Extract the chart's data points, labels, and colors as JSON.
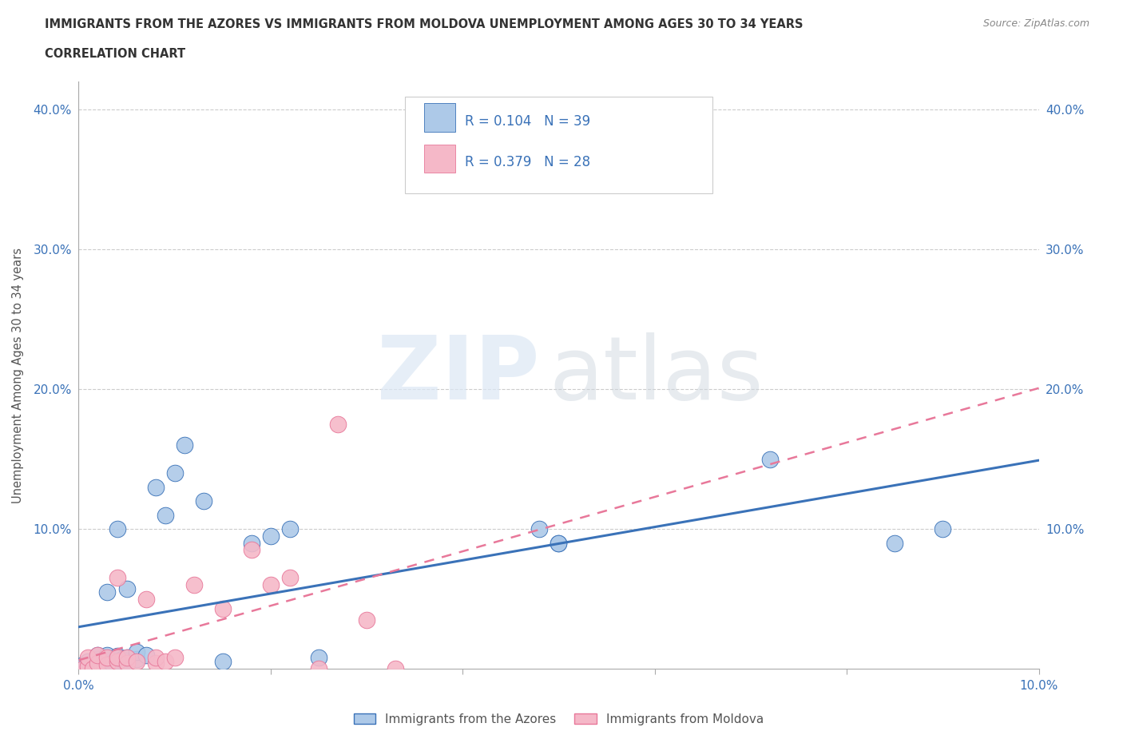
{
  "title_line1": "IMMIGRANTS FROM THE AZORES VS IMMIGRANTS FROM MOLDOVA UNEMPLOYMENT AMONG AGES 30 TO 34 YEARS",
  "title_line2": "CORRELATION CHART",
  "source": "Source: ZipAtlas.com",
  "ylabel": "Unemployment Among Ages 30 to 34 years",
  "xlim": [
    0.0,
    0.1
  ],
  "ylim": [
    0.0,
    0.42
  ],
  "legend_label1": "Immigrants from the Azores",
  "legend_label2": "Immigrants from Moldova",
  "R1": "0.104",
  "N1": "39",
  "R2": "0.379",
  "N2": "28",
  "color_azores": "#adc9e8",
  "color_moldova": "#f5b8c8",
  "color_line_azores": "#3a72b8",
  "color_line_moldova": "#e8789a",
  "color_text_blue": "#3a72b8",
  "color_text_dark": "#333333",
  "color_grid": "#cccccc",
  "azores_x": [
    0.0005,
    0.001,
    0.001,
    0.0015,
    0.002,
    0.002,
    0.002,
    0.0025,
    0.003,
    0.003,
    0.003,
    0.003,
    0.0035,
    0.004,
    0.004,
    0.004,
    0.0045,
    0.005,
    0.005,
    0.005,
    0.006,
    0.006,
    0.007,
    0.008,
    0.009,
    0.01,
    0.011,
    0.013,
    0.015,
    0.018,
    0.02,
    0.022,
    0.025,
    0.048,
    0.05,
    0.05,
    0.072,
    0.085,
    0.09
  ],
  "azores_y": [
    0.003,
    0.001,
    0.005,
    0.0,
    0.004,
    0.007,
    0.01,
    0.002,
    0.004,
    0.007,
    0.01,
    0.055,
    0.004,
    0.006,
    0.009,
    0.1,
    0.007,
    0.004,
    0.008,
    0.057,
    0.007,
    0.012,
    0.01,
    0.13,
    0.11,
    0.14,
    0.16,
    0.12,
    0.005,
    0.09,
    0.095,
    0.1,
    0.008,
    0.1,
    0.09,
    0.09,
    0.15,
    0.09,
    0.1
  ],
  "moldova_x": [
    0.0005,
    0.001,
    0.001,
    0.0015,
    0.002,
    0.002,
    0.003,
    0.003,
    0.004,
    0.004,
    0.004,
    0.005,
    0.005,
    0.006,
    0.007,
    0.008,
    0.008,
    0.009,
    0.01,
    0.012,
    0.015,
    0.018,
    0.02,
    0.022,
    0.025,
    0.027,
    0.03,
    0.033
  ],
  "moldova_y": [
    0.0,
    0.002,
    0.008,
    0.0,
    0.004,
    0.01,
    0.003,
    0.008,
    0.005,
    0.065,
    0.008,
    0.004,
    0.008,
    0.005,
    0.05,
    0.004,
    0.008,
    0.005,
    0.008,
    0.06,
    0.043,
    0.085,
    0.06,
    0.065,
    0.0,
    0.175,
    0.035,
    0.0
  ]
}
